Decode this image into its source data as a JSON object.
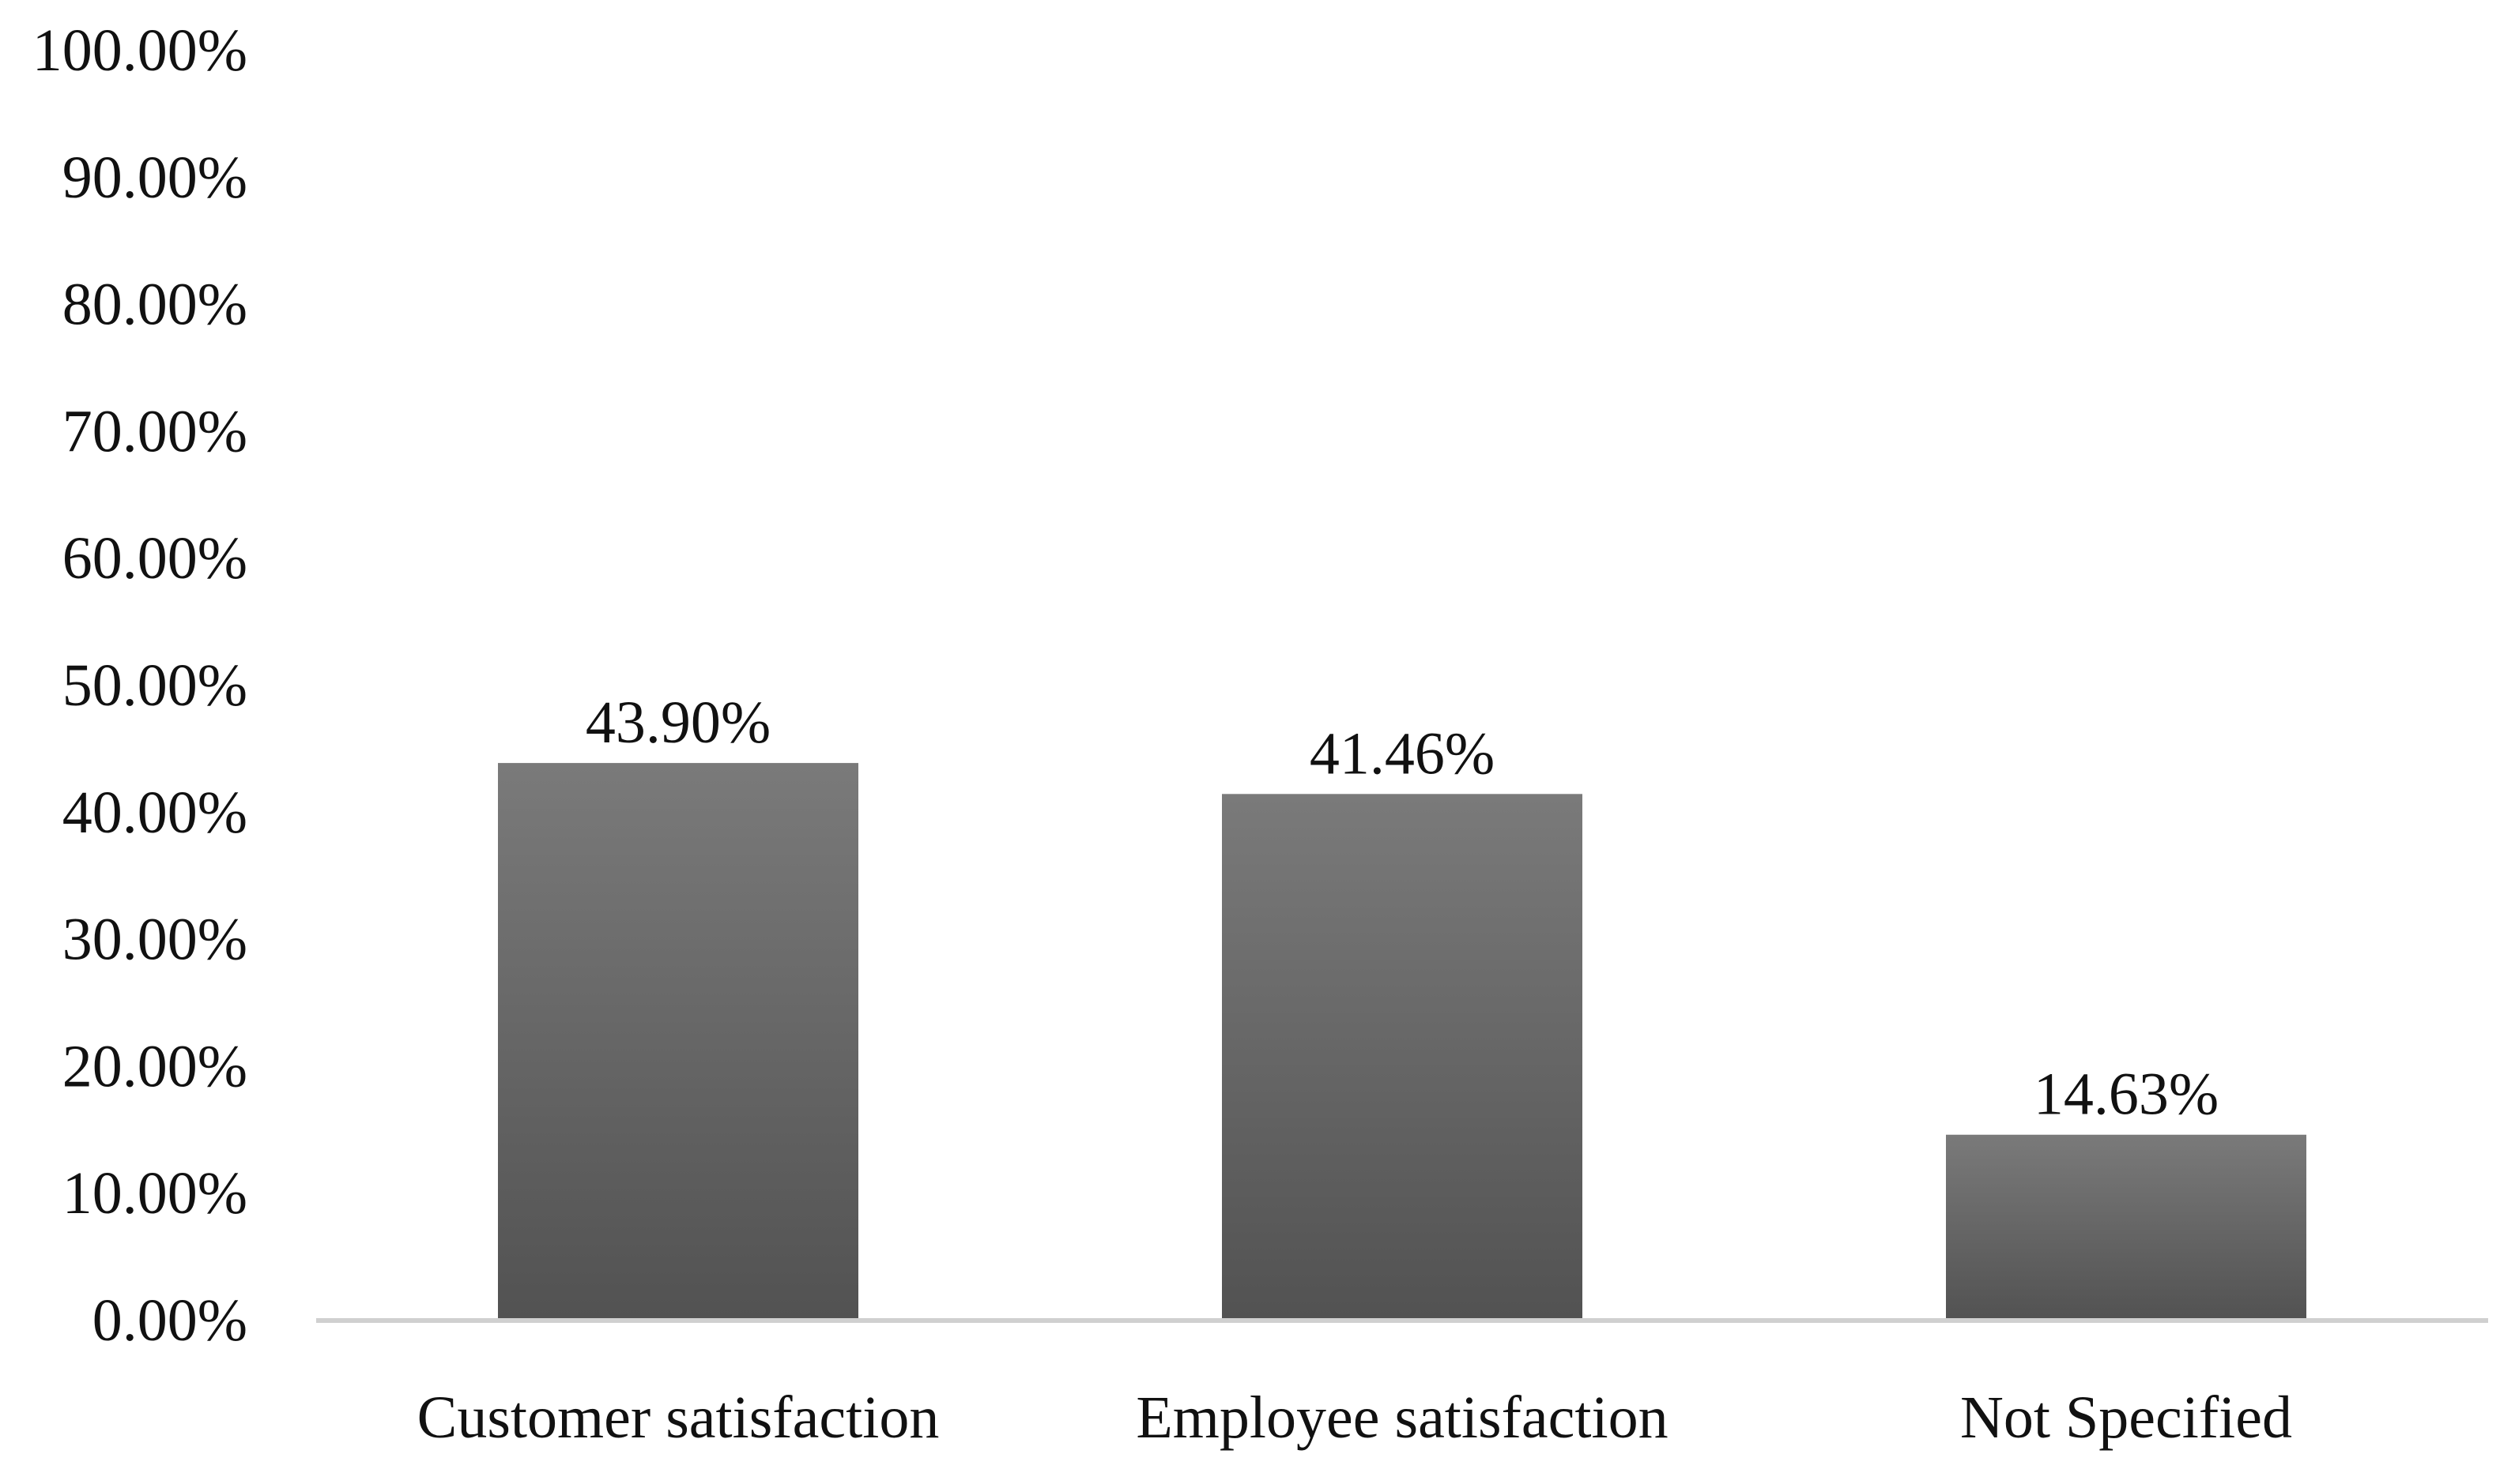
{
  "chart_data": {
    "type": "bar",
    "title": "",
    "xlabel": "",
    "ylabel": "",
    "categories": [
      "Customer satisfaction",
      "Employee satisfaction",
      "Not Specified"
    ],
    "values": [
      43.9,
      41.46,
      14.63
    ],
    "data_labels": [
      "43.90%",
      "41.46%",
      "14.63%"
    ],
    "ylim": [
      0,
      100
    ],
    "yticks": [
      0,
      10,
      20,
      30,
      40,
      50,
      60,
      70,
      80,
      90,
      100
    ],
    "ytick_labels": [
      "0.00%",
      "10.00%",
      "20.00%",
      "30.00%",
      "40.00%",
      "50.00%",
      "60.00%",
      "70.00%",
      "80.00%",
      "90.00%",
      "100.00%"
    ],
    "grid": false,
    "legend": "none",
    "colors": {
      "bar_top": "#7a7a7a",
      "bar_bottom": "#525252",
      "axis": "#d0d0d0",
      "text": "#111111"
    }
  }
}
